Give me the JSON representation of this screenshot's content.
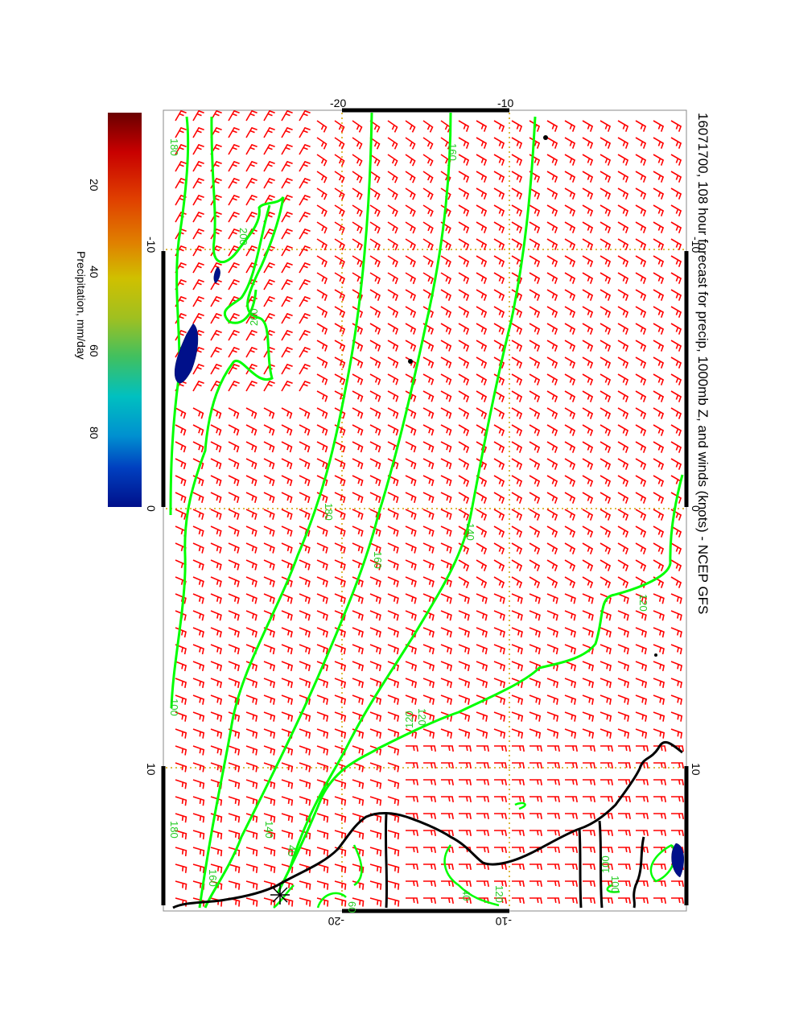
{
  "title": "16071700, 108 hour forecast for precip, 1000mb Z, and winds (knots) - NCEP GFS",
  "colorbar": {
    "label": "Precipitation, mm/day",
    "ticks": [
      "20",
      "40",
      "60",
      "80"
    ],
    "range": [
      0,
      100
    ],
    "colors": [
      "#6a0000",
      "#c80000",
      "#e04000",
      "#e08000",
      "#d0c000",
      "#a0c020",
      "#40c060",
      "#00c0c0",
      "#0090d0",
      "#0040c0",
      "#00108a"
    ]
  },
  "axes": {
    "top_ticks": [
      "-20",
      "-10"
    ],
    "bottom_ticks": [
      "-20",
      "-10"
    ],
    "left_ticks": [
      "-10",
      "0",
      "10"
    ],
    "right_ticks": [
      "-10",
      "0",
      "10"
    ]
  },
  "contour_labels": [
    "180",
    "160",
    "200",
    "200",
    "180",
    "160",
    "140",
    "120",
    "120",
    "100",
    "180",
    "160",
    "140",
    "120",
    "100",
    "60",
    "40",
    "40",
    "100",
    "120"
  ],
  "colors": {
    "contour": "#00ff00",
    "wind_barb": "#ff0000",
    "coast": "#000000",
    "grid": "#d4a000",
    "precip": "#00108a"
  }
}
